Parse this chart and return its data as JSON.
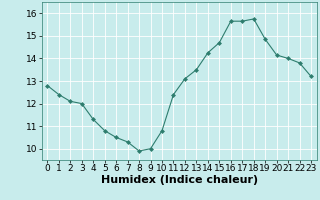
{
  "x": [
    0,
    1,
    2,
    3,
    4,
    5,
    6,
    7,
    8,
    9,
    10,
    11,
    12,
    13,
    14,
    15,
    16,
    17,
    18,
    19,
    20,
    21,
    22,
    23
  ],
  "y": [
    12.8,
    12.4,
    12.1,
    12.0,
    11.3,
    10.8,
    10.5,
    10.3,
    9.9,
    10.0,
    10.8,
    12.4,
    13.1,
    13.5,
    14.25,
    14.7,
    15.65,
    15.65,
    15.75,
    14.85,
    14.15,
    14.0,
    13.8,
    13.2
  ],
  "xlabel": "Humidex (Indice chaleur)",
  "ylim": [
    9.5,
    16.5
  ],
  "xlim": [
    -0.5,
    23.5
  ],
  "yticks": [
    10,
    11,
    12,
    13,
    14,
    15,
    16
  ],
  "xticks": [
    0,
    1,
    2,
    3,
    4,
    5,
    6,
    7,
    8,
    9,
    10,
    11,
    12,
    13,
    14,
    15,
    16,
    17,
    18,
    19,
    20,
    21,
    22,
    23
  ],
  "line_color": "#2e7d6e",
  "marker_color": "#2e7d6e",
  "bg_color": "#c8ecec",
  "grid_color": "#ffffff",
  "xlabel_fontsize": 8,
  "tick_fontsize": 6.5
}
